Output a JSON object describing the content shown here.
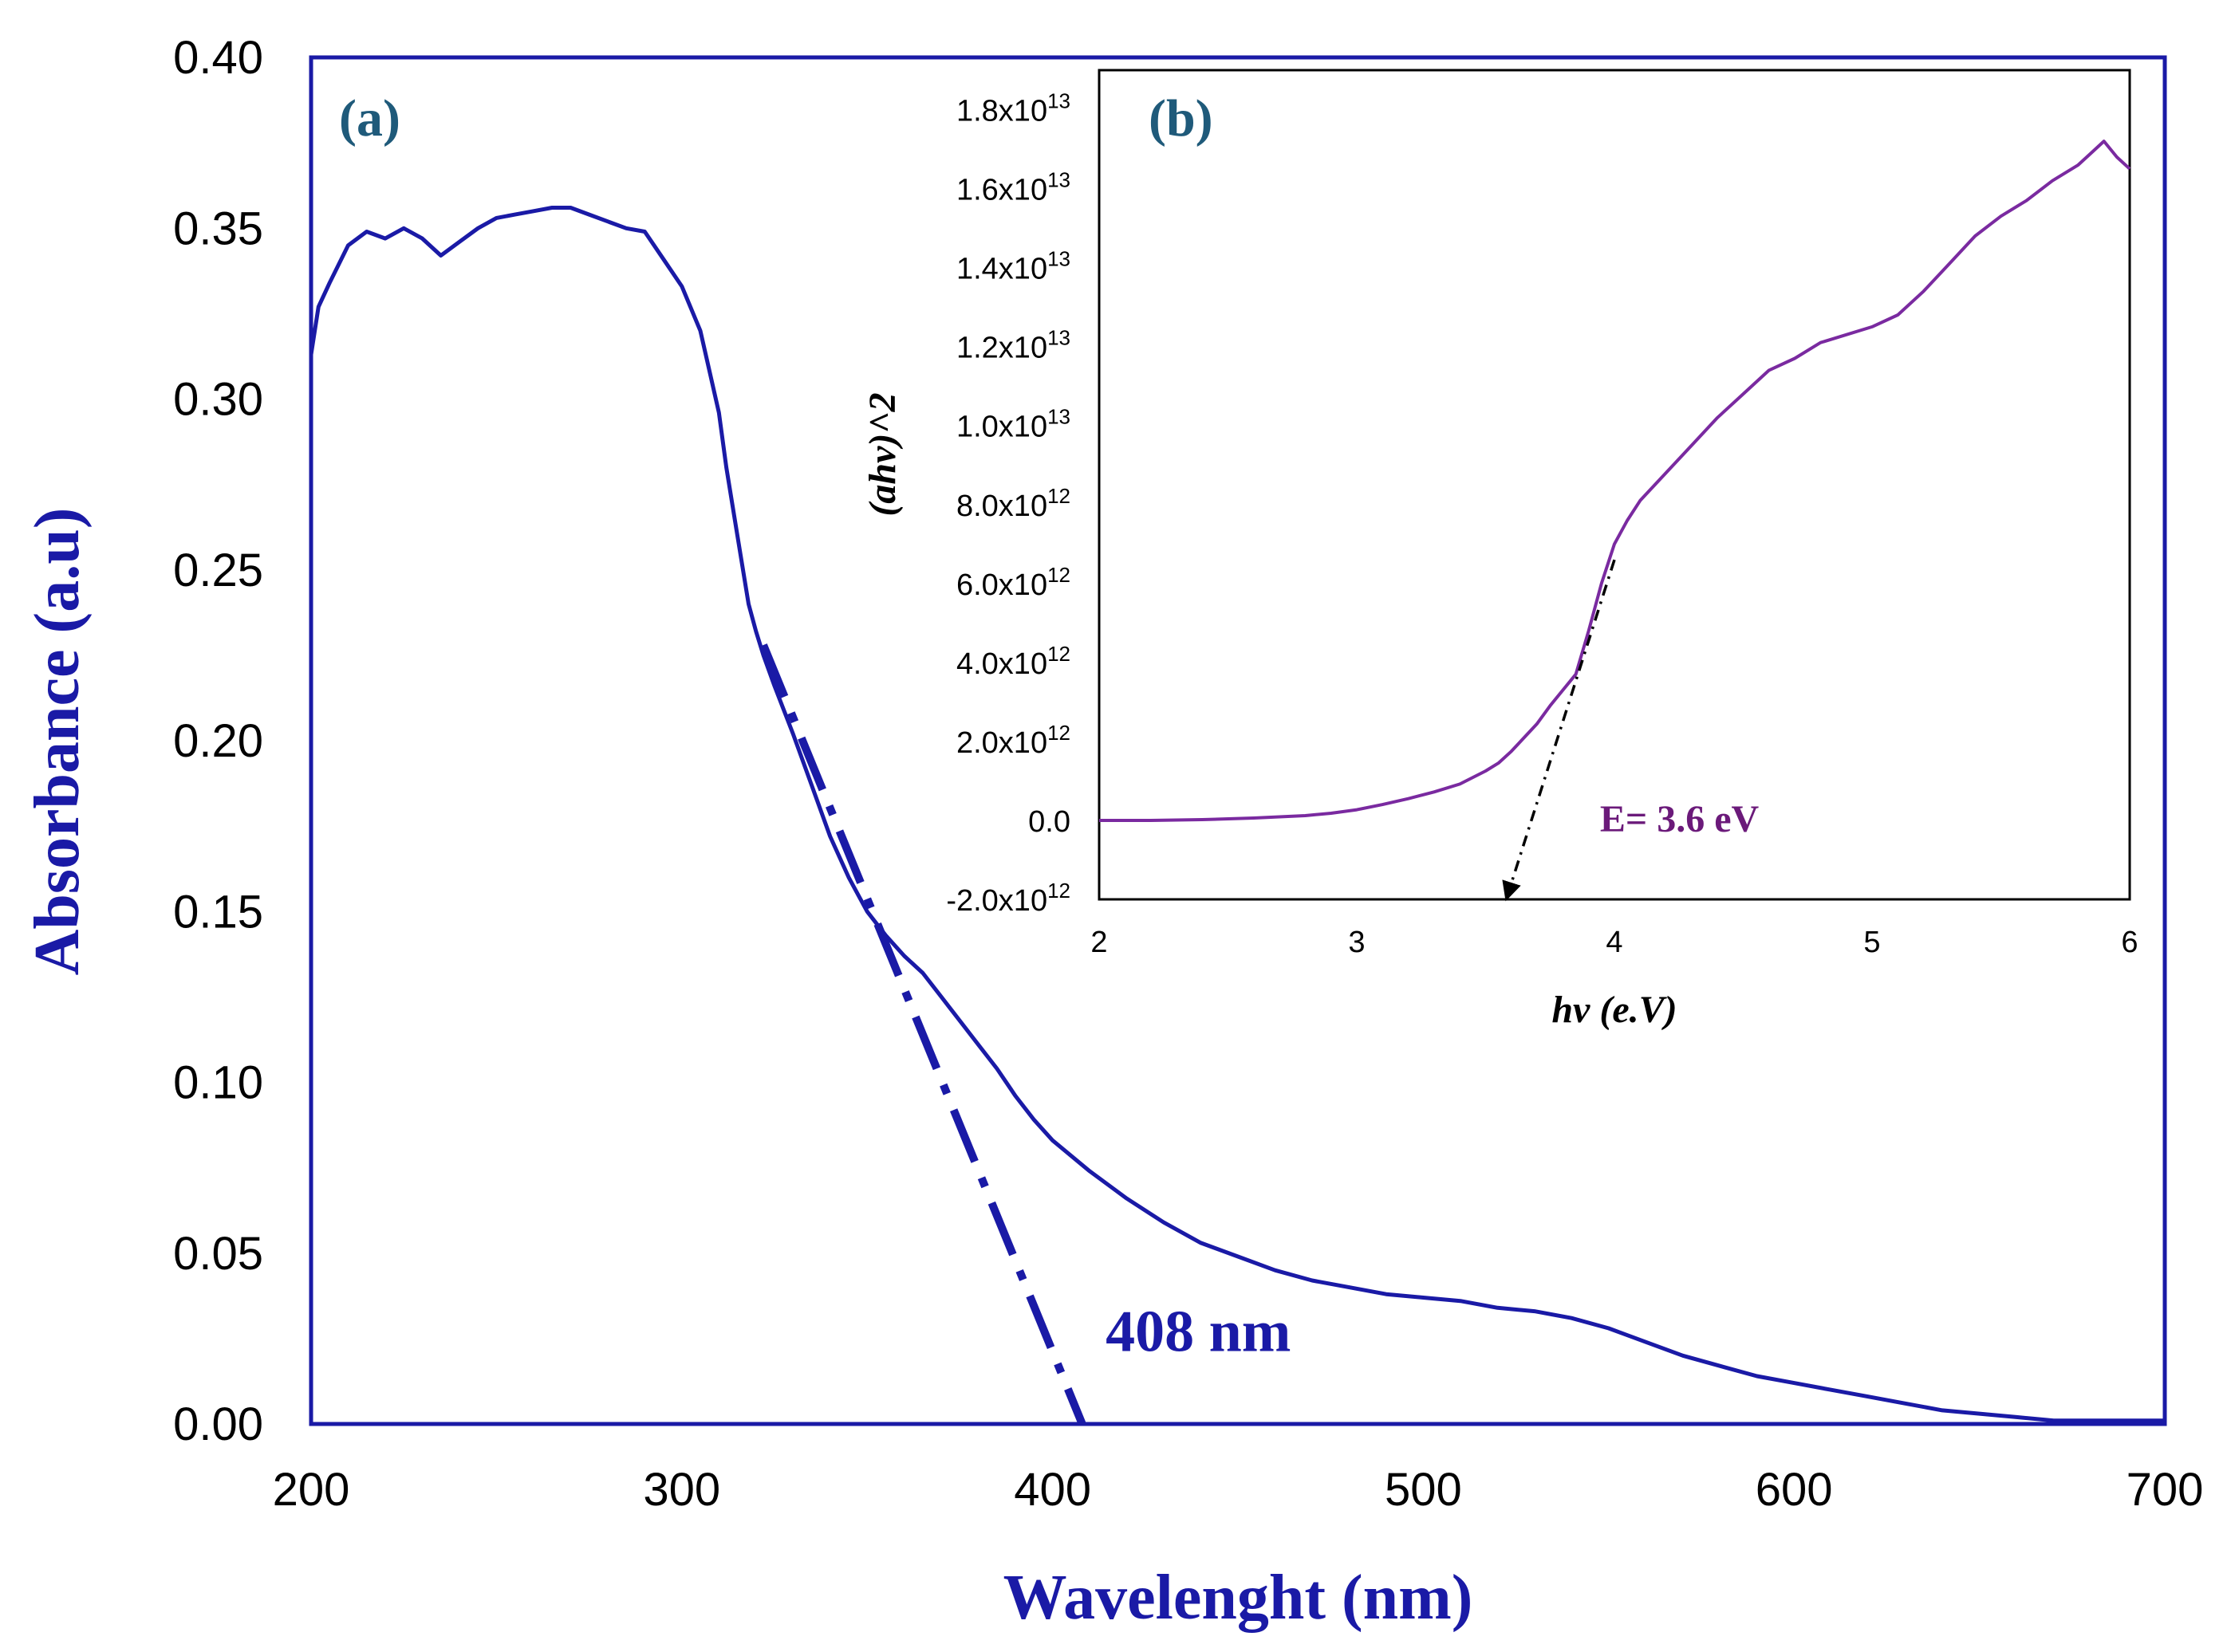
{
  "chart_data": [
    {
      "id": "a",
      "type": "line",
      "panel_label": "(a)",
      "xlabel": "Wavelenght (nm)",
      "ylabel": "Absorbance (a.u)",
      "xlim": [
        200,
        700
      ],
      "ylim": [
        0,
        0.4
      ],
      "xticks": [
        "200",
        "300",
        "400",
        "500",
        "600",
        "700"
      ],
      "yticks": [
        "0.00",
        "0.05",
        "0.10",
        "0.15",
        "0.20",
        "0.25",
        "0.30",
        "0.35",
        "0.40"
      ],
      "colors": {
        "line": "#1a1aa6",
        "label": "#1a1aa6",
        "panel_label": "#1f5a7a",
        "frame": "#1a1aa6"
      },
      "series": [
        {
          "name": "Absorbance",
          "x": [
            200,
            202,
            205,
            210,
            215,
            220,
            225,
            230,
            235,
            240,
            245,
            250,
            255,
            260,
            265,
            270,
            275,
            280,
            285,
            290,
            295,
            300,
            305,
            310,
            312,
            315,
            318,
            320,
            322,
            325,
            330,
            335,
            340,
            345,
            350,
            355,
            360,
            365,
            370,
            375,
            380,
            385,
            390,
            395,
            400,
            410,
            420,
            430,
            440,
            450,
            460,
            470,
            480,
            490,
            500,
            510,
            520,
            530,
            540,
            550,
            560,
            570,
            580,
            590,
            600,
            610,
            620,
            630,
            640,
            650,
            660,
            670,
            680,
            690,
            700
          ],
          "y": [
            0.313,
            0.327,
            0.334,
            0.345,
            0.349,
            0.347,
            0.35,
            0.347,
            0.342,
            0.346,
            0.35,
            0.353,
            0.354,
            0.355,
            0.356,
            0.356,
            0.354,
            0.352,
            0.35,
            0.349,
            0.341,
            0.333,
            0.32,
            0.296,
            0.28,
            0.26,
            0.24,
            0.232,
            0.225,
            0.216,
            0.202,
            0.187,
            0.172,
            0.16,
            0.15,
            0.143,
            0.137,
            0.132,
            0.125,
            0.118,
            0.111,
            0.104,
            0.096,
            0.089,
            0.083,
            0.074,
            0.066,
            0.059,
            0.053,
            0.049,
            0.045,
            0.042,
            0.04,
            0.038,
            0.037,
            0.036,
            0.034,
            0.033,
            0.031,
            0.028,
            0.024,
            0.02,
            0.017,
            0.014,
            0.012,
            0.01,
            0.008,
            0.006,
            0.004,
            0.003,
            0.002,
            0.001,
            0.001,
            0.001,
            0.001
          ]
        },
        {
          "name": "Tangent fit",
          "style": "dash-dot",
          "x": [
            322,
            408
          ],
          "y": [
            0.228,
            0.0
          ]
        }
      ],
      "annotations": [
        {
          "text": "408 nm",
          "x": 410,
          "y": 0.012
        }
      ]
    },
    {
      "id": "b",
      "type": "line",
      "panel_label": "(b)",
      "xlabel": "hv (e.V)",
      "ylabel": "(ahv)^2",
      "xlim": [
        2,
        6
      ],
      "ylim": [
        -2000000000000.0,
        19000000000000.0
      ],
      "xticks": [
        "2",
        "3",
        "4",
        "5",
        "6"
      ],
      "yticks": [
        {
          "value": -2000000000000.0,
          "mant": "-2.0x10",
          "exp": "12"
        },
        {
          "value": 0,
          "mant": "0.0",
          "exp": ""
        },
        {
          "value": 2000000000000.0,
          "mant": "2.0x10",
          "exp": "12"
        },
        {
          "value": 4000000000000.0,
          "mant": "4.0x10",
          "exp": "12"
        },
        {
          "value": 6000000000000.0,
          "mant": "6.0x10",
          "exp": "12"
        },
        {
          "value": 8000000000000.0,
          "mant": "8.0x10",
          "exp": "12"
        },
        {
          "value": 10000000000000.0,
          "mant": "1.0x10",
          "exp": "13"
        },
        {
          "value": 12000000000000.0,
          "mant": "1.2x10",
          "exp": "13"
        },
        {
          "value": 14000000000000.0,
          "mant": "1.4x10",
          "exp": "13"
        },
        {
          "value": 16000000000000.0,
          "mant": "1.6x10",
          "exp": "13"
        },
        {
          "value": 18000000000000.0,
          "mant": "1.8x10",
          "exp": "13"
        }
      ],
      "colors": {
        "line": "#7a2aa0",
        "annotation": "#6b1a7a",
        "panel_label": "#1f5a7a",
        "frame": "#000000"
      },
      "series": [
        {
          "name": "Tauc plot",
          "x": [
            2.0,
            2.2,
            2.4,
            2.6,
            2.8,
            2.9,
            3.0,
            3.1,
            3.2,
            3.3,
            3.4,
            3.5,
            3.55,
            3.6,
            3.65,
            3.7,
            3.75,
            3.8,
            3.85,
            3.9,
            3.95,
            4.0,
            4.05,
            4.1,
            4.2,
            4.3,
            4.4,
            4.5,
            4.6,
            4.7,
            4.8,
            4.9,
            5.0,
            5.1,
            5.2,
            5.3,
            5.4,
            5.5,
            5.6,
            5.7,
            5.8,
            5.85,
            5.9,
            5.95,
            6.0
          ],
          "y": [
            0.0,
            0.0,
            20000000000.0,
            60000000000.0,
            120000000000.0,
            180000000000.0,
            270000000000.0,
            400000000000.0,
            550000000000.0,
            720000000000.0,
            920000000000.0,
            1250000000000.0,
            1450000000000.0,
            1750000000000.0,
            2100000000000.0,
            2450000000000.0,
            2900000000000.0,
            3300000000000.0,
            3700000000000.0,
            4800000000000.0,
            6000000000000.0,
            7000000000000.0,
            7600000000000.0,
            8100000000000.0,
            8800000000000.0,
            9500000000000.0,
            10200000000000.0,
            10800000000000.0,
            11400000000000.0,
            11700000000000.0,
            12100000000000.0,
            12300000000000.0,
            12500000000000.0,
            12800000000000.0,
            13400000000000.0,
            14100000000000.0,
            14800000000000.0,
            15300000000000.0,
            15700000000000.0,
            16200000000000.0,
            16600000000000.0,
            16900000000000.0,
            17200000000000.0,
            16800000000000.0,
            16500000000000.0
          ]
        },
        {
          "name": "Tangent fit",
          "style": "dash-dot-arrow",
          "x": [
            4.0,
            3.58
          ],
          "y": [
            6600000000000.0,
            -2000000000000.0
          ]
        }
      ],
      "annotations": [
        {
          "text": "E= 3.6 eV",
          "x": 3.82,
          "y": 0.0
        }
      ]
    }
  ]
}
